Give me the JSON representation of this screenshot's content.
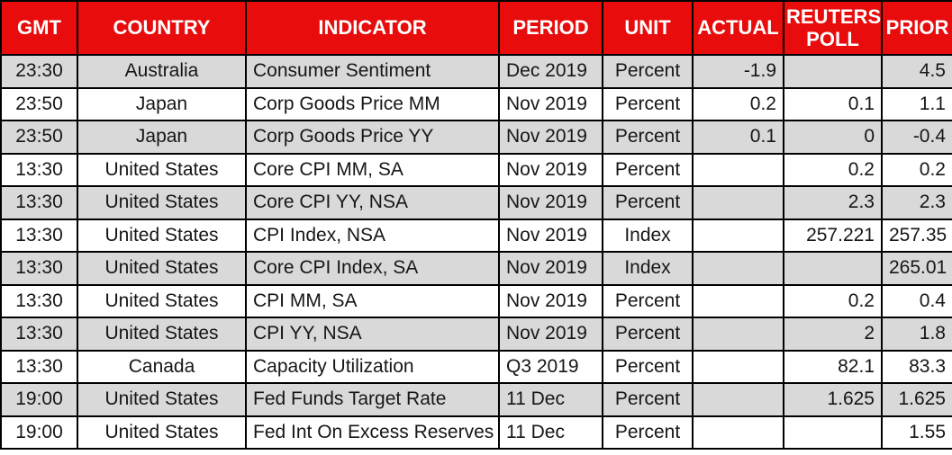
{
  "chart_data": {
    "type": "table",
    "columns": [
      {
        "key": "gmt",
        "label": "GMT"
      },
      {
        "key": "country",
        "label": "COUNTRY"
      },
      {
        "key": "indicator",
        "label": "INDICATOR"
      },
      {
        "key": "period",
        "label": "PERIOD"
      },
      {
        "key": "unit",
        "label": "UNIT"
      },
      {
        "key": "actual",
        "label": "ACTUAL"
      },
      {
        "key": "reuters_poll",
        "label": "REUTERS POLL"
      },
      {
        "key": "prior",
        "label": "PRIOR"
      }
    ],
    "rows": [
      [
        "23:30",
        "Australia",
        "Consumer Sentiment",
        "Dec 2019",
        "Percent",
        "-1.9",
        "",
        "4.5"
      ],
      [
        "23:50",
        "Japan",
        "Corp Goods Price MM",
        "Nov 2019",
        "Percent",
        "0.2",
        "0.1",
        "1.1"
      ],
      [
        "23:50",
        "Japan",
        "Corp Goods Price YY",
        "Nov 2019",
        "Percent",
        "0.1",
        "0",
        "-0.4"
      ],
      [
        "13:30",
        "United States",
        "Core CPI MM, SA",
        "Nov 2019",
        "Percent",
        "",
        "0.2",
        "0.2"
      ],
      [
        "13:30",
        "United States",
        "Core CPI YY, NSA",
        "Nov 2019",
        "Percent",
        "",
        "2.3",
        "2.3"
      ],
      [
        "13:30",
        "United States",
        "CPI Index, NSA",
        "Nov 2019",
        "Index",
        "",
        "257.221",
        "257.35"
      ],
      [
        "13:30",
        "United States",
        "Core CPI Index, SA",
        "Nov 2019",
        "Index",
        "",
        "",
        "265.01"
      ],
      [
        "13:30",
        "United States",
        "CPI MM, SA",
        "Nov 2019",
        "Percent",
        "",
        "0.2",
        "0.4"
      ],
      [
        "13:30",
        "United States",
        "CPI YY, NSA",
        "Nov 2019",
        "Percent",
        "",
        "2",
        "1.8"
      ],
      [
        "13:30",
        "Canada",
        "Capacity Utilization",
        "Q3 2019",
        "Percent",
        "",
        "82.1",
        "83.3"
      ],
      [
        "19:00",
        "United States",
        "Fed Funds Target Rate",
        "11 Dec",
        "Percent",
        "",
        "1.625",
        "1.625"
      ],
      [
        "19:00",
        "United States",
        "Fed Int On Excess Reserves",
        "11 Dec",
        "Percent",
        "",
        "",
        "1.55"
      ]
    ]
  },
  "colors": {
    "header_bg": "#E80C0C",
    "header_text": "#FFFFFF",
    "row_alt_bg": "#D9D9D9",
    "row_bg": "#FFFFFF",
    "border": "#000000",
    "cell_text": "#161616"
  }
}
